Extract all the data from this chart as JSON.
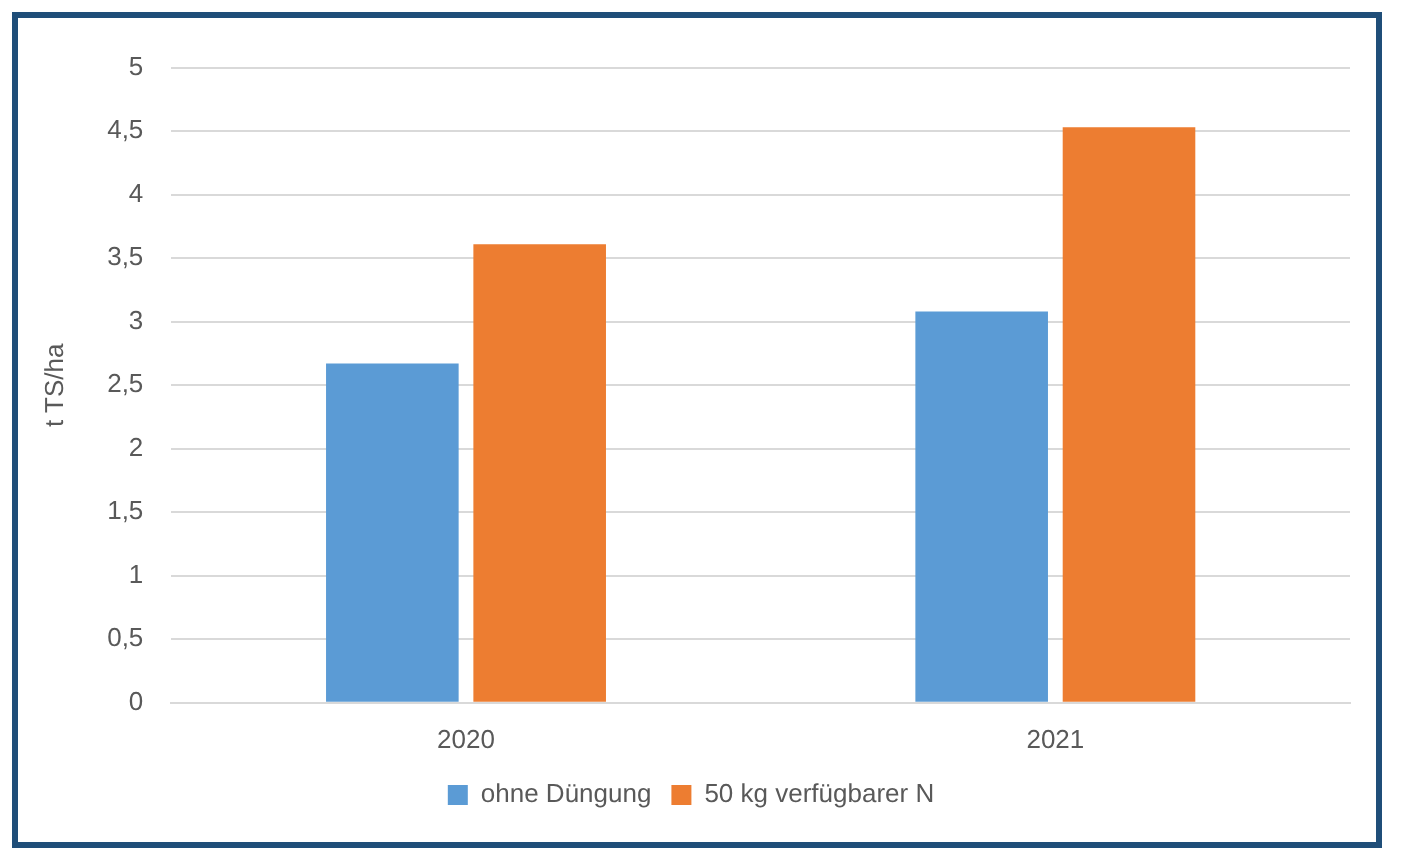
{
  "chart_data": {
    "type": "bar",
    "ylabel": "t TS/ha",
    "categories": [
      "2020",
      "2021"
    ],
    "series": [
      {
        "name": "ohne Düngung",
        "color": "#5b9bd5",
        "values": [
          2.67,
          3.08
        ]
      },
      {
        "name": "50 kg verfügbarer N",
        "color": "#ed7d31",
        "values": [
          3.61,
          4.53
        ]
      }
    ],
    "ylim": [
      0,
      5
    ],
    "yticks": [
      0,
      {
        "value": 0.5,
        "label": "0,5"
      },
      1,
      {
        "value": 1.5,
        "label": "1,5"
      },
      2,
      {
        "value": 2.5,
        "label": "2,5"
      },
      3,
      {
        "value": 3.5,
        "label": "3,5"
      },
      4,
      {
        "value": 4.5,
        "label": "4,5"
      },
      5
    ],
    "grid": "y",
    "legend": "bottom"
  }
}
